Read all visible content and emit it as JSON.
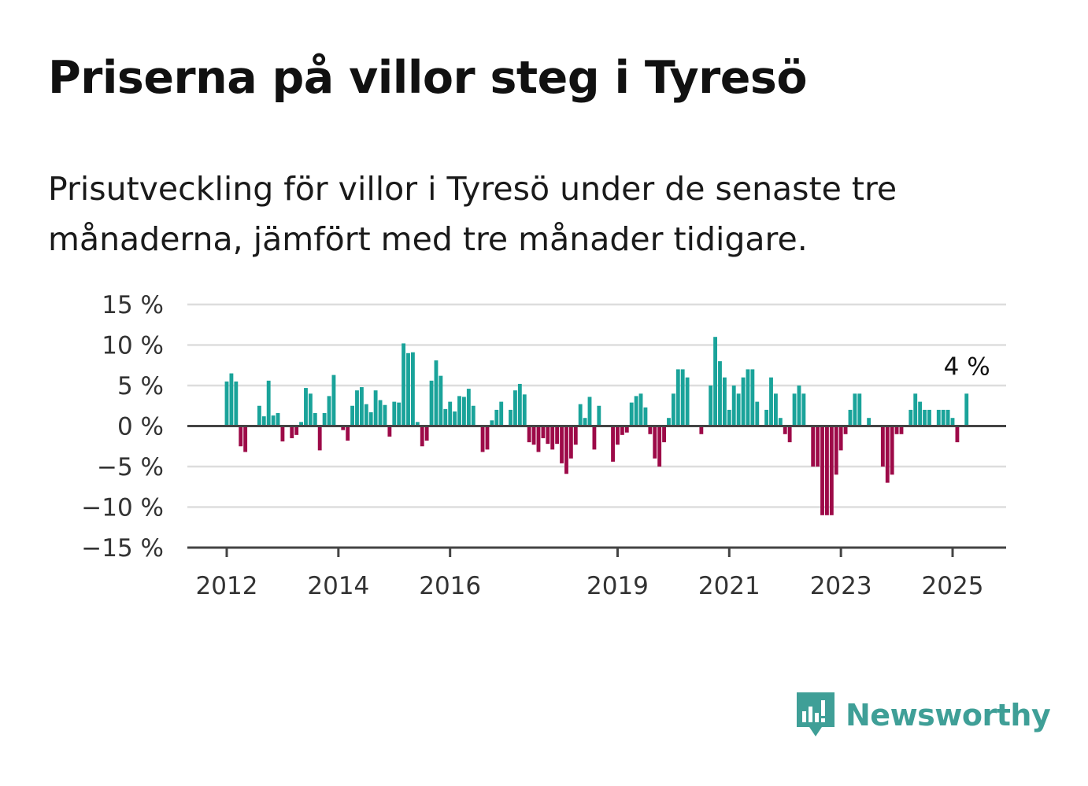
{
  "title": "Priserna på villor steg i Tyresö",
  "subtitle": "Prisutveckling för villor i Tyresö under de senaste tre månaderna, jämfört med tre månader tidigare.",
  "brand": {
    "name": "Newsworthy",
    "logo_icon": "bar-chart-speech-bubble-icon"
  },
  "colors": {
    "positive": "#1aa39a",
    "negative": "#9d0a48",
    "grid": "#dddddd",
    "axis": "#444444"
  },
  "chart_data": {
    "type": "bar",
    "title": "Priserna på villor steg i Tyresö",
    "xlabel": "",
    "ylabel": "",
    "ylim": [
      -15,
      15
    ],
    "y_ticks": [
      15,
      10,
      5,
      0,
      -5,
      -10,
      -15
    ],
    "y_tick_labels": [
      "15 %",
      "10 %",
      "5 %",
      "0 %",
      "−5 %",
      "−10 %",
      "−15 %"
    ],
    "x_tick_labels": [
      "2012",
      "2014",
      "2016",
      "2019",
      "2021",
      "2023",
      "2025"
    ],
    "grid": true,
    "last_value_label": "4 %",
    "start": "2012-01",
    "end": "2025-04",
    "values": [
      5.5,
      6.5,
      5.5,
      -2.5,
      -3.2,
      0,
      0,
      2.5,
      1.2,
      5.6,
      1.3,
      1.6,
      -1.9,
      0,
      -1.5,
      -1.1,
      0.5,
      4.7,
      4.0,
      1.6,
      -3.0,
      1.6,
      3.7,
      6.3,
      0,
      -0.5,
      -1.8,
      2.5,
      4.4,
      4.8,
      2.7,
      1.7,
      4.4,
      3.2,
      2.6,
      -1.3,
      3.0,
      2.9,
      10.2,
      9.0,
      9.1,
      0.5,
      -2.5,
      -1.8,
      5.6,
      8.1,
      6.2,
      2.1,
      3.0,
      1.8,
      3.7,
      3.6,
      4.6,
      2.5,
      0,
      -3.2,
      -2.9,
      0.7,
      2.0,
      3.0,
      0,
      2.0,
      4.4,
      5.2,
      3.9,
      -2.0,
      -2.3,
      -3.2,
      -1.5,
      -2.2,
      -2.9,
      -2.2,
      -4.6,
      -5.9,
      -4.0,
      -2.3,
      2.7,
      1.0,
      3.6,
      -2.9,
      2.5,
      0,
      0,
      -4.4,
      -2.3,
      -1.1,
      -0.8,
      2.9,
      3.7,
      4.0,
      2.3,
      -1.0,
      -4.0,
      -5.0,
      -2.0,
      1.0,
      4.0,
      7.0,
      7.0,
      6.0,
      0,
      0,
      -1.0,
      0,
      5.0,
      11.0,
      8.0,
      6.0,
      2.0,
      5.0,
      4.0,
      6.0,
      7.0,
      7.0,
      3.0,
      0,
      2.0,
      6.0,
      4.0,
      1.0,
      -1.0,
      -2.0,
      4.0,
      5.0,
      4.0,
      0,
      -5.0,
      -5.0,
      -11.0,
      -11.0,
      -11.0,
      -6.0,
      -3.0,
      -1.0,
      2.0,
      4.0,
      4.0,
      0,
      1.0,
      0,
      0,
      -5.0,
      -7.0,
      -6.0,
      -1.0,
      -1.0,
      0,
      2.0,
      4.0,
      3.0,
      2.0,
      2.0,
      0,
      2.0,
      2.0,
      2.0,
      1.0,
      -2.0,
      0,
      4.0
    ]
  }
}
